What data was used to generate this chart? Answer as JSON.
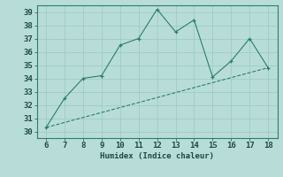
{
  "x": [
    6,
    7,
    8,
    9,
    10,
    11,
    12,
    13,
    14,
    15,
    16,
    17,
    18
  ],
  "y": [
    30.3,
    32.5,
    34.0,
    34.2,
    36.5,
    37.0,
    39.2,
    37.5,
    38.4,
    34.1,
    35.3,
    37.0,
    34.8
  ],
  "trend_x": [
    6,
    18
  ],
  "trend_y": [
    30.3,
    34.8
  ],
  "line_color": "#2a7d6f",
  "bg_color": "#b8ddd8",
  "grid_color": "#9eccc6",
  "xlabel": "Humidex (Indice chaleur)",
  "xlim": [
    5.5,
    18.5
  ],
  "ylim": [
    29.5,
    39.5
  ],
  "xticks": [
    6,
    7,
    8,
    9,
    10,
    11,
    12,
    13,
    14,
    15,
    16,
    17,
    18
  ],
  "yticks": [
    30,
    31,
    32,
    33,
    34,
    35,
    36,
    37,
    38,
    39
  ],
  "font_size": 6.5
}
